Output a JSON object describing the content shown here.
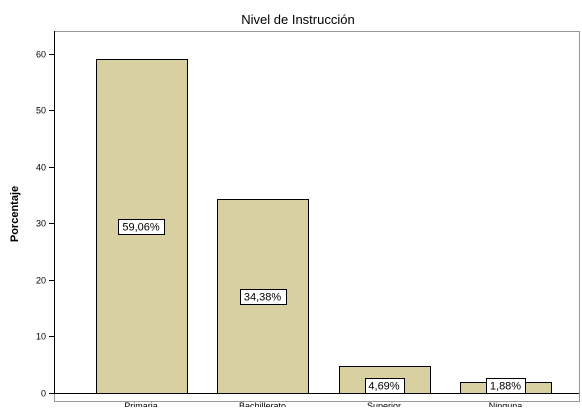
{
  "chart_data": {
    "type": "bar",
    "title": "Nivel de Instrucción",
    "xlabel": "",
    "ylabel": "Porcentaje",
    "categories": [
      "Primaria",
      "Bachillerato",
      "Superior",
      "Ninguna"
    ],
    "values": [
      59.06,
      34.38,
      4.69,
      1.88
    ],
    "data_labels": [
      "59,06%",
      "34,38%",
      "4,69%",
      "1,88%"
    ],
    "ylim": [
      0,
      64
    ],
    "yticks": [
      0,
      10,
      20,
      30,
      40,
      50,
      60
    ],
    "grid": false,
    "legend": "none",
    "bar_color": "#d8d0a0",
    "edge_color": "#000000"
  }
}
